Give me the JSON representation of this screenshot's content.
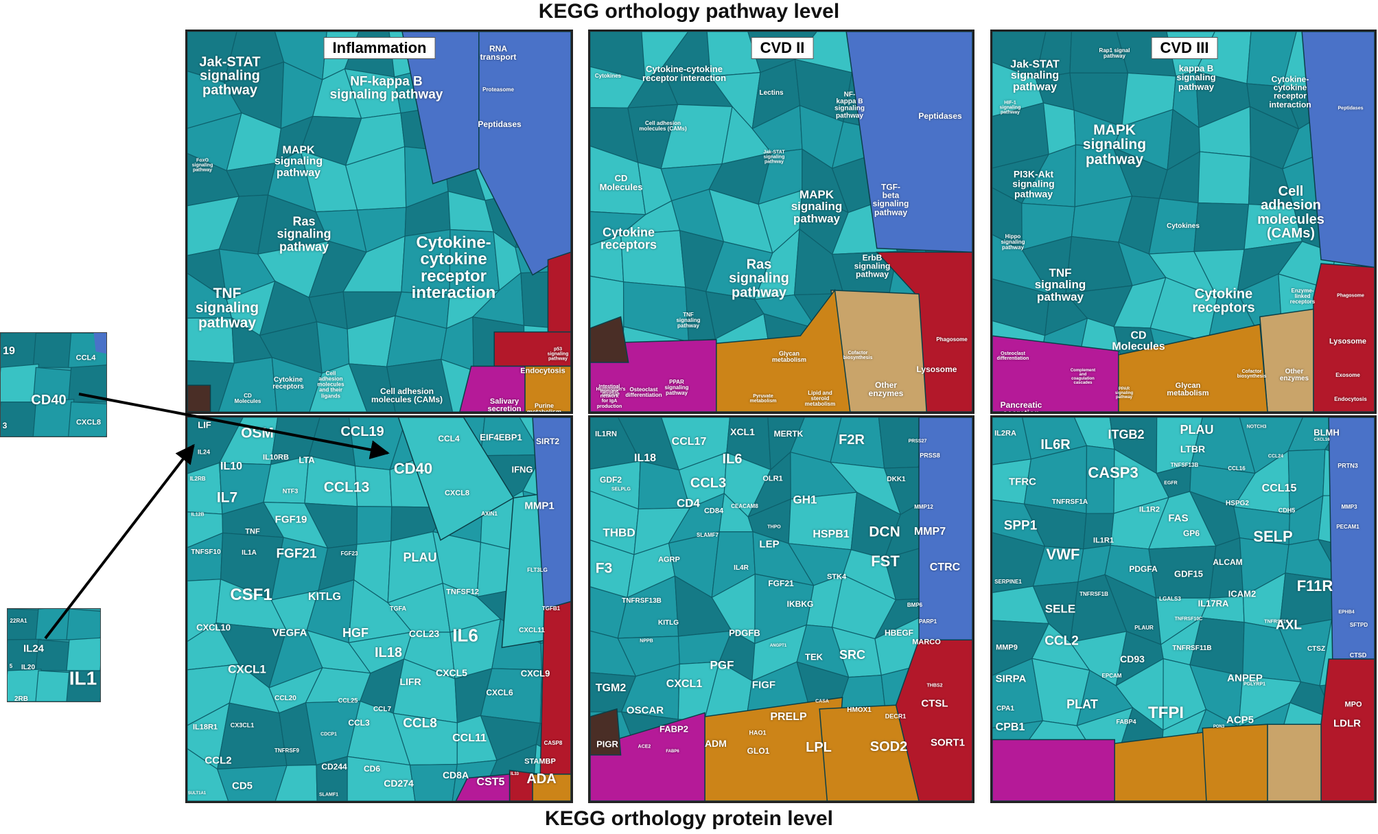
{
  "headings": {
    "top": "KEGG orthology pathway level",
    "bottom": "KEGG orthology protein level"
  },
  "colors": {
    "teal_light": "#39c2c4",
    "teal_mid": "#1f9aa5",
    "teal_dark": "#157a86",
    "blue": "#4a72c8",
    "red": "#b3182a",
    "orange": "#cc8418",
    "magenta": "#b51a98",
    "tan": "#c9a46a",
    "dark": "#4a2e26"
  },
  "panels": [
    {
      "title": "Inflammation",
      "labels": [
        {
          "t": "Jak-STAT\nsignaling\npathway",
          "s": 20
        },
        {
          "t": "NF-kappa B\nsignaling pathway",
          "s": 19
        },
        {
          "t": "RNA\ntransport",
          "s": 12
        },
        {
          "t": "Proteasome",
          "s": 8
        },
        {
          "t": "Peptidases",
          "s": 12
        },
        {
          "t": "MAPK\nsignaling\npathway",
          "s": 16
        },
        {
          "t": "FoxO\nsignaling\npathway",
          "s": 7
        },
        {
          "t": "Ras\nsignaling\npathway",
          "s": 18
        },
        {
          "t": "Cytokine-\ncytokine\nreceptor\ninteraction",
          "s": 24
        },
        {
          "t": "TNF\nsignaling\npathway",
          "s": 21
        },
        {
          "t": "Cytokine\nreceptors",
          "s": 10
        },
        {
          "t": "Cell\nadhesion\nmolecules\nand their\nligands",
          "s": 8
        },
        {
          "t": "Cell adhesion\nmolecules (CAMs)",
          "s": 12
        },
        {
          "t": "CD\nMolecules",
          "s": 8
        },
        {
          "t": "Endocytosis",
          "s": 11
        },
        {
          "t": "Salivary\nsecretion",
          "s": 11
        },
        {
          "t": "Purine\nmetabolism",
          "s": 9
        },
        {
          "t": "p53\nsignaling\npathway",
          "s": 7
        }
      ]
    },
    {
      "title": "CVD II",
      "labels": [
        {
          "t": "Cytokines",
          "s": 8
        },
        {
          "t": "Cytokine-cytokine\nreceptor interaction",
          "s": 13
        },
        {
          "t": "Lectins",
          "s": 10
        },
        {
          "t": "NF-\nkappa B\nsignaling\npathway",
          "s": 10
        },
        {
          "t": "Peptidases",
          "s": 12
        },
        {
          "t": "Cell adhesion\nmolecules (CAMs)",
          "s": 8
        },
        {
          "t": "CD\nMolecules",
          "s": 13
        },
        {
          "t": "Jak-STAT\nsignaling\npathway",
          "s": 7
        },
        {
          "t": "MAPK\nsignaling\npathway",
          "s": 17
        },
        {
          "t": "TGF-\nbeta\nsignaling\npathway",
          "s": 12
        },
        {
          "t": "Cytokine\nreceptors",
          "s": 18
        },
        {
          "t": "Ras\nsignaling\npathway",
          "s": 20
        },
        {
          "t": "ErbB\nsignaling\npathway",
          "s": 12
        },
        {
          "t": "TNF\nsignaling\npathway",
          "s": 8
        },
        {
          "t": "Huntington's\ndisease",
          "s": 7
        },
        {
          "t": "Osteoclast\ndifferentiation",
          "s": 8
        },
        {
          "t": "Phagosome",
          "s": 8
        },
        {
          "t": "Glycan\nmetabolism",
          "s": 9
        },
        {
          "t": "Cofactor\nbiosynthesis",
          "s": 7
        },
        {
          "t": "Other\nenzymes",
          "s": 12
        },
        {
          "t": "Lysosome",
          "s": 12
        },
        {
          "t": "PPAR\nsignaling\npathway",
          "s": 8
        },
        {
          "t": "Intestinal\nimmune\nnetwork\nfor IgA\nproduction",
          "s": 7
        },
        {
          "t": "Lipid and\nsteroid\nmetabolism",
          "s": 8
        },
        {
          "t": "Pyruvate\nmetabolism",
          "s": 7
        }
      ]
    },
    {
      "title": "CVD III",
      "labels": [
        {
          "t": "Jak-STAT\nsignaling\npathway",
          "s": 16
        },
        {
          "t": "Rap1 signal\npathway",
          "s": 8
        },
        {
          "t": "kappa B\nsignaling\npathway",
          "s": 13
        },
        {
          "t": "Cytokine-\ncytokine\nreceptor\ninteraction",
          "s": 12
        },
        {
          "t": "HIF-1\nsignaling\npathway",
          "s": 7
        },
        {
          "t": "MAPK\nsignaling\npathway",
          "s": 21
        },
        {
          "t": "Peptidases",
          "s": 7
        },
        {
          "t": "PI3K-Akt\nsignaling\npathway",
          "s": 14
        },
        {
          "t": "Cell\nadhesion\nmolecules\n(CAMs)",
          "s": 20
        },
        {
          "t": "Hippo\nsignaling\npathway",
          "s": 8
        },
        {
          "t": "Cytokines",
          "s": 10
        },
        {
          "t": "TNF\nsignaling\npathway",
          "s": 17
        },
        {
          "t": "Cytokine\nreceptors",
          "s": 20
        },
        {
          "t": "Enzyme-\nlinked\nreceptors",
          "s": 8
        },
        {
          "t": "CD\nMolecules",
          "s": 16
        },
        {
          "t": "Lysosome",
          "s": 11
        },
        {
          "t": "Osteoclast\ndifferentiation",
          "s": 7
        },
        {
          "t": "Pancreatic\nsecretion",
          "s": 12
        },
        {
          "t": "Complement\nand\ncoagulation\ncascades",
          "s": 6
        },
        {
          "t": "PPAR\nsignaling\npathway",
          "s": 6
        },
        {
          "t": "Glycan\nmetabolism",
          "s": 11
        },
        {
          "t": "Cofactor\nbiosynthesis",
          "s": 7
        },
        {
          "t": "Other\nenzymes",
          "s": 10
        },
        {
          "t": "Exosome",
          "s": 8
        },
        {
          "t": "Endocytosis",
          "s": 8
        },
        {
          "t": "Phagosome",
          "s": 7
        }
      ]
    },
    {
      "title": "",
      "labels": [
        {
          "t": "LIF",
          "s": 13
        },
        {
          "t": "OSM",
          "s": 21
        },
        {
          "t": "CCL19",
          "s": 20
        },
        {
          "t": "CCL4",
          "s": 12
        },
        {
          "t": "EIF4EBP1",
          "s": 13
        },
        {
          "t": "SIRT2",
          "s": 12
        },
        {
          "t": "IL24",
          "s": 9
        },
        {
          "t": "IL10",
          "s": 16
        },
        {
          "t": "IL10RB",
          "s": 11
        },
        {
          "t": "LTA",
          "s": 13
        },
        {
          "t": "CD40",
          "s": 22
        },
        {
          "t": "IFNG",
          "s": 13
        },
        {
          "t": "IL2RB",
          "s": 8
        },
        {
          "t": "IL7",
          "s": 21
        },
        {
          "t": "NTF3",
          "s": 9
        },
        {
          "t": "CCL13",
          "s": 21
        },
        {
          "t": "CXCL8",
          "s": 11
        },
        {
          "t": "MMP1",
          "s": 15
        },
        {
          "t": "FGF19",
          "s": 15
        },
        {
          "t": "TNF",
          "s": 11
        },
        {
          "t": "AXIN1",
          "s": 8
        },
        {
          "t": "IL12B",
          "s": 7
        },
        {
          "t": "PLAU",
          "s": 18
        },
        {
          "t": "TNFSF10",
          "s": 10
        },
        {
          "t": "IL1A",
          "s": 10
        },
        {
          "t": "FGF21",
          "s": 19
        },
        {
          "t": "FGF23",
          "s": 8
        },
        {
          "t": "FLT3LG",
          "s": 8
        },
        {
          "t": "TGFB1",
          "s": 8
        },
        {
          "t": "CSF1",
          "s": 24
        },
        {
          "t": "KITLG",
          "s": 16
        },
        {
          "t": "TNFSF12",
          "s": 11
        },
        {
          "t": "TGFA",
          "s": 9
        },
        {
          "t": "IL6",
          "s": 26
        },
        {
          "t": "CXCL10",
          "s": 13
        },
        {
          "t": "VEGFA",
          "s": 15
        },
        {
          "t": "HGF",
          "s": 18
        },
        {
          "t": "CCL23",
          "s": 14
        },
        {
          "t": "CXCL11",
          "s": 10
        },
        {
          "t": "IL18",
          "s": 20
        },
        {
          "t": "CXCL1",
          "s": 17
        },
        {
          "t": "LIFR",
          "s": 14
        },
        {
          "t": "CXCL5",
          "s": 14
        },
        {
          "t": "CXCL9",
          "s": 13
        },
        {
          "t": "CXCL6",
          "s": 12
        },
        {
          "t": "CCL25",
          "s": 9
        },
        {
          "t": "CCL20",
          "s": 10
        },
        {
          "t": "CCL7",
          "s": 10
        },
        {
          "t": "IL18R1",
          "s": 11
        },
        {
          "t": "CX3CL1",
          "s": 9
        },
        {
          "t": "CASP8",
          "s": 8
        },
        {
          "t": "CCL3",
          "s": 12
        },
        {
          "t": "CCL8",
          "s": 19
        },
        {
          "t": "CDCP1",
          "s": 7
        },
        {
          "t": "CCL11",
          "s": 16
        },
        {
          "t": "TNFRSF9",
          "s": 8
        },
        {
          "t": "STAMBP",
          "s": 11
        },
        {
          "t": "CCL2",
          "s": 15
        },
        {
          "t": "CD244",
          "s": 12
        },
        {
          "t": "CD6",
          "s": 12
        },
        {
          "t": "CD8A",
          "s": 14
        },
        {
          "t": "IL33",
          "s": 6
        },
        {
          "t": "ADA",
          "s": 20
        },
        {
          "t": "CD5",
          "s": 15
        },
        {
          "t": "CD274",
          "s": 14
        },
        {
          "t": "CST5",
          "s": 16
        },
        {
          "t": "SLAMF1",
          "s": 7
        },
        {
          "t": "SULT1A1",
          "s": 6
        }
      ]
    },
    {
      "title": "",
      "labels": [
        {
          "t": "IL1RN",
          "s": 11
        },
        {
          "t": "CCL17",
          "s": 16
        },
        {
          "t": "XCL1",
          "s": 14
        },
        {
          "t": "MERTK",
          "s": 12
        },
        {
          "t": "F2R",
          "s": 20
        },
        {
          "t": "PRSS27",
          "s": 7
        },
        {
          "t": "PRSS8",
          "s": 9
        },
        {
          "t": "IL18",
          "s": 16
        },
        {
          "t": "IL6",
          "s": 20
        },
        {
          "t": "OLR1",
          "s": 11
        },
        {
          "t": "DKK1",
          "s": 10
        },
        {
          "t": "GDF2",
          "s": 12
        },
        {
          "t": "CCL3",
          "s": 20
        },
        {
          "t": "GH1",
          "s": 17
        },
        {
          "t": "MMP12",
          "s": 8
        },
        {
          "t": "SELPLG",
          "s": 7
        },
        {
          "t": "CD4",
          "s": 17
        },
        {
          "t": "CEACAM8",
          "s": 8
        },
        {
          "t": "THBD",
          "s": 17
        },
        {
          "t": "CD84",
          "s": 11
        },
        {
          "t": "THPO",
          "s": 7
        },
        {
          "t": "HSPB1",
          "s": 16
        },
        {
          "t": "DCN",
          "s": 21
        },
        {
          "t": "MMP7",
          "s": 16
        },
        {
          "t": "SLAMF7",
          "s": 8
        },
        {
          "t": "LEP",
          "s": 15
        },
        {
          "t": "AGRP",
          "s": 11
        },
        {
          "t": "FST",
          "s": 22
        },
        {
          "t": "CTRC",
          "s": 16
        },
        {
          "t": "F3",
          "s": 21
        },
        {
          "t": "IL4R",
          "s": 10
        },
        {
          "t": "FGF21",
          "s": 12
        },
        {
          "t": "STK4",
          "s": 11
        },
        {
          "t": "TNFRSF13B",
          "s": 10
        },
        {
          "t": "IKBKG",
          "s": 12
        },
        {
          "t": "BMP6",
          "s": 8
        },
        {
          "t": "PARP1",
          "s": 8
        },
        {
          "t": "KITLG",
          "s": 10
        },
        {
          "t": "PDGFB",
          "s": 13
        },
        {
          "t": "HBEGF",
          "s": 12
        },
        {
          "t": "NPPB",
          "s": 7
        },
        {
          "t": "ANGPT1",
          "s": 6
        },
        {
          "t": "MARCO",
          "s": 11
        },
        {
          "t": "TEK",
          "s": 13
        },
        {
          "t": "SRC",
          "s": 18
        },
        {
          "t": "PGF",
          "s": 17
        },
        {
          "t": "TGM2",
          "s": 16
        },
        {
          "t": "CXCL1",
          "s": 16
        },
        {
          "t": "FIGF",
          "s": 15
        },
        {
          "t": "THBS2",
          "s": 7
        },
        {
          "t": "CASA",
          "s": 7
        },
        {
          "t": "HMOX1",
          "s": 10
        },
        {
          "t": "CTSL",
          "s": 15
        },
        {
          "t": "OSCAR",
          "s": 15
        },
        {
          "t": "PRELP",
          "s": 16
        },
        {
          "t": "DECR1",
          "s": 9
        },
        {
          "t": "FABP2",
          "s": 13
        },
        {
          "t": "HAO1",
          "s": 9
        },
        {
          "t": "PIGR",
          "s": 13
        },
        {
          "t": "ACE2",
          "s": 7
        },
        {
          "t": "FABP6",
          "s": 6
        },
        {
          "t": "ADM",
          "s": 14
        },
        {
          "t": "GLO1",
          "s": 12
        },
        {
          "t": "LPL",
          "s": 20
        },
        {
          "t": "SOD2",
          "s": 20
        },
        {
          "t": "SORT1",
          "s": 15
        }
      ]
    },
    {
      "title": "",
      "labels": [
        {
          "t": "IL2RA",
          "s": 11
        },
        {
          "t": "IL6R",
          "s": 20
        },
        {
          "t": "ITGB2",
          "s": 18
        },
        {
          "t": "PLAU",
          "s": 18
        },
        {
          "t": "NOTCH3",
          "s": 7
        },
        {
          "t": "BLMH",
          "s": 13
        },
        {
          "t": "LTBR",
          "s": 14
        },
        {
          "t": "CXCL16",
          "s": 6
        },
        {
          "t": "CCL24",
          "s": 7
        },
        {
          "t": "CASP3",
          "s": 22
        },
        {
          "t": "TNFSF13B",
          "s": 8
        },
        {
          "t": "CCL16",
          "s": 8
        },
        {
          "t": "PRTN3",
          "s": 9
        },
        {
          "t": "TFRC",
          "s": 15
        },
        {
          "t": "EGFR",
          "s": 7
        },
        {
          "t": "CCL15",
          "s": 16
        },
        {
          "t": "TNFRSF1A",
          "s": 10
        },
        {
          "t": "MMP3",
          "s": 8
        },
        {
          "t": "IL1R2",
          "s": 11
        },
        {
          "t": "HSPG2",
          "s": 10
        },
        {
          "t": "CDH5",
          "s": 9
        },
        {
          "t": "SPP1",
          "s": 19
        },
        {
          "t": "FAS",
          "s": 15
        },
        {
          "t": "PECAM1",
          "s": 8
        },
        {
          "t": "GP6",
          "s": 12
        },
        {
          "t": "SELP",
          "s": 22
        },
        {
          "t": "IL1R1",
          "s": 11
        },
        {
          "t": "VWF",
          "s": 22
        },
        {
          "t": "PDGFA",
          "s": 12
        },
        {
          "t": "ALCAM",
          "s": 12
        },
        {
          "t": "GDF15",
          "s": 13
        },
        {
          "t": "SERPINE1",
          "s": 8
        },
        {
          "t": "ICAM2",
          "s": 13
        },
        {
          "t": "F11R",
          "s": 22
        },
        {
          "t": "TNFRSF1B",
          "s": 8
        },
        {
          "t": "LGALS3",
          "s": 8
        },
        {
          "t": "SELE",
          "s": 17
        },
        {
          "t": "IL17RA",
          "s": 13
        },
        {
          "t": "EPHB4",
          "s": 7
        },
        {
          "t": "TNFRSF10C",
          "s": 7
        },
        {
          "t": "TNFRSF14",
          "s": 7
        },
        {
          "t": "AXL",
          "s": 19
        },
        {
          "t": "SFTPD",
          "s": 8
        },
        {
          "t": "CCL2",
          "s": 19
        },
        {
          "t": "PLAUR",
          "s": 8
        },
        {
          "t": "MMP9",
          "s": 11
        },
        {
          "t": "CD93",
          "s": 14
        },
        {
          "t": "TNFRSF11B",
          "s": 10
        },
        {
          "t": "CTSZ",
          "s": 10
        },
        {
          "t": "CTSD",
          "s": 9
        },
        {
          "t": "EPCAM",
          "s": 8
        },
        {
          "t": "SIRPA",
          "s": 15
        },
        {
          "t": "ANPEP",
          "s": 15
        },
        {
          "t": "PGLYRP1",
          "s": 7
        },
        {
          "t": "MPO",
          "s": 11
        },
        {
          "t": "PLAT",
          "s": 18
        },
        {
          "t": "CPA1",
          "s": 10
        },
        {
          "t": "TFPI",
          "s": 24
        },
        {
          "t": "FABP4",
          "s": 9
        },
        {
          "t": "ACP5",
          "s": 15
        },
        {
          "t": "LDLR",
          "s": 15
        },
        {
          "t": "CPB1",
          "s": 16
        },
        {
          "t": "PON3",
          "s": 6
        }
      ]
    }
  ],
  "insets": [
    {
      "labels": [
        {
          "t": "19",
          "s": 16
        },
        {
          "t": "CCL4",
          "s": 11
        },
        {
          "t": "CD40",
          "s": 20
        },
        {
          "t": "3",
          "s": 12
        },
        {
          "t": "CXCL8",
          "s": 11
        }
      ]
    },
    {
      "labels": [
        {
          "t": "22RA1",
          "s": 8
        },
        {
          "t": "IL24",
          "s": 15
        },
        {
          "t": "IL20",
          "s": 10
        },
        {
          "t": "5",
          "s": 8
        },
        {
          "t": "IL1",
          "s": 28
        },
        {
          "t": "2RB",
          "s": 10
        }
      ]
    }
  ]
}
